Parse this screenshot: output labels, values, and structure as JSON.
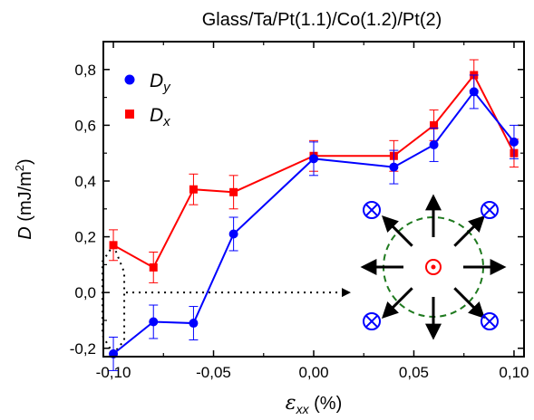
{
  "chart_data": {
    "type": "line",
    "title": "Glass/Ta/Pt(1.1)/Co(1.2)/Pt(2)",
    "xlabel": {
      "symbol": "ε",
      "sub": "xx",
      "unit": " (%)"
    },
    "ylabel": {
      "symbol": "D",
      "unit": " (mJ/m",
      "sup": "2",
      "close": ")"
    },
    "xlim": [
      -0.105,
      0.105
    ],
    "ylim": [
      -0.23,
      0.9
    ],
    "x_ticks": [
      -0.1,
      -0.05,
      0.0,
      0.05,
      0.1
    ],
    "x_tick_labels": [
      "-0,10",
      "-0,05",
      "0,00",
      "0,05",
      "0,10"
    ],
    "y_ticks": [
      -0.2,
      0.0,
      0.2,
      0.4,
      0.6,
      0.8
    ],
    "y_tick_labels": [
      "-0,2",
      "0,0",
      "0,2",
      "0,4",
      "0,6",
      "0,8"
    ],
    "grid": false,
    "legend_position": "top-left",
    "series": [
      {
        "name": {
          "main": "D",
          "sub": "y"
        },
        "color": "#0000ff",
        "marker": "circle",
        "x": [
          -0.1,
          -0.08,
          -0.06,
          -0.04,
          0.0,
          0.04,
          0.06,
          0.08,
          0.1
        ],
        "y": [
          -0.22,
          -0.105,
          -0.11,
          0.21,
          0.48,
          0.45,
          0.53,
          0.72,
          0.54
        ],
        "err": [
          0.06,
          0.06,
          0.06,
          0.06,
          0.06,
          0.06,
          0.06,
          0.06,
          0.06
        ]
      },
      {
        "name": {
          "main": "D",
          "sub": "x"
        },
        "color": "#ff0000",
        "marker": "square",
        "x": [
          -0.1,
          -0.08,
          -0.06,
          -0.04,
          0.0,
          0.04,
          0.06,
          0.08,
          0.1
        ],
        "y": [
          0.17,
          0.09,
          0.37,
          0.36,
          0.49,
          0.49,
          0.6,
          0.78,
          0.5
        ],
        "err": [
          0.055,
          0.055,
          0.055,
          0.06,
          0.055,
          0.055,
          0.055,
          0.055,
          0.05
        ]
      }
    ],
    "inset_colors": {
      "ring": "#1f7a1f",
      "arrows": "#000000",
      "out_of_plane_up": "#ff0000",
      "out_of_plane_down": "#0000ff"
    }
  }
}
